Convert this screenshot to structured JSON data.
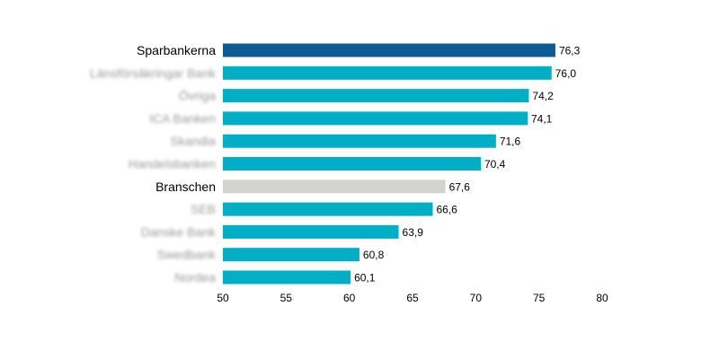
{
  "chart_data": {
    "type": "bar",
    "orientation": "horizontal",
    "categories": [
      "Sparbankerna",
      "Länsförsäkringar Bank",
      "Övriga",
      "ICA Banken",
      "Skandia",
      "Handelsbanken",
      "Branschen",
      "SEB",
      "Danske Bank",
      "Swedbank",
      "Nordea"
    ],
    "values": [
      76.3,
      76.0,
      74.2,
      74.1,
      71.6,
      70.4,
      67.6,
      66.6,
      63.9,
      60.8,
      60.1
    ],
    "value_labels": [
      "76,3",
      "76,0",
      "74,2",
      "74,1",
      "71,6",
      "70,4",
      "67,6",
      "66,6",
      "63,9",
      "60,8",
      "60,1"
    ],
    "blurred_labels": [
      false,
      true,
      true,
      true,
      true,
      true,
      false,
      true,
      true,
      true,
      true
    ],
    "bar_colors": [
      "#0f5c94",
      "#00afc6",
      "#00afc6",
      "#00afc6",
      "#00afc6",
      "#00afc6",
      "#d2d2ce",
      "#00afc6",
      "#00afc6",
      "#00afc6",
      "#00afc6"
    ],
    "xlim": [
      50,
      80
    ],
    "x_ticks": [
      "50",
      "55",
      "60",
      "65",
      "70",
      "75",
      "80"
    ],
    "x_tick_values": [
      50,
      55,
      60,
      65,
      70,
      75,
      80
    ],
    "grid": false,
    "title": "",
    "xlabel": "",
    "ylabel": ""
  }
}
